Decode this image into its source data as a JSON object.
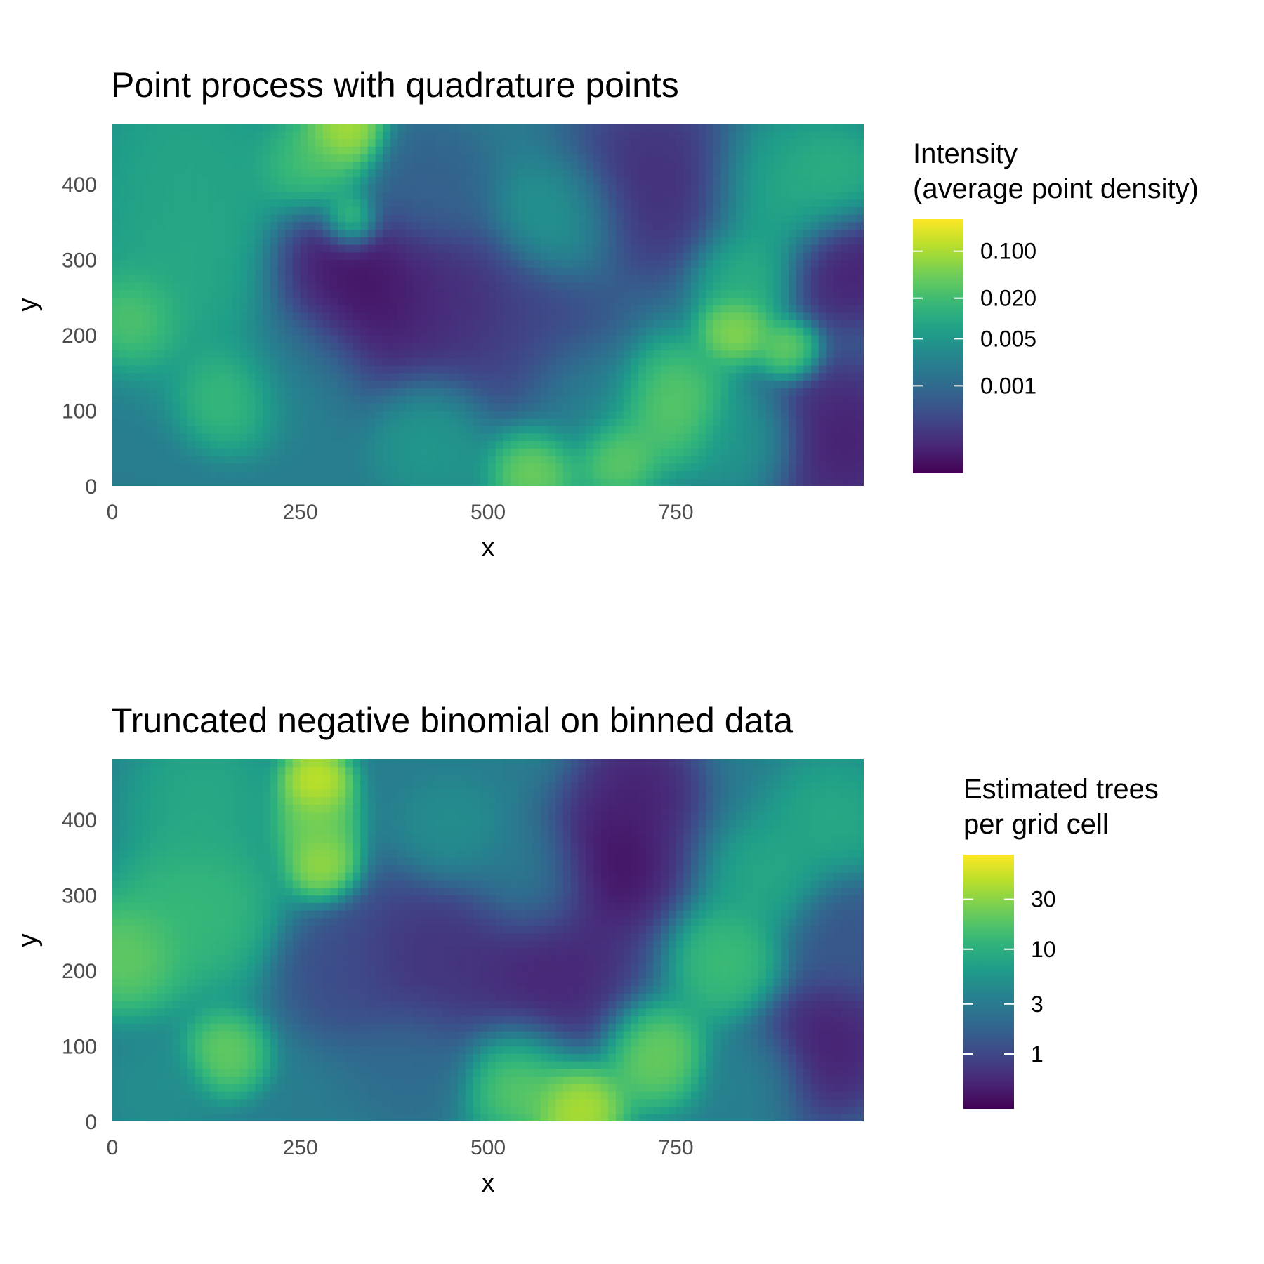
{
  "chart_data": [
    {
      "type": "heatmap",
      "title": "Point process with quadrature points",
      "xlabel": "x",
      "ylabel": "y",
      "xlim": [
        0,
        1000
      ],
      "ylim": [
        0,
        480
      ],
      "xticks": [
        0,
        250,
        500,
        750
      ],
      "xtick_labels": [
        "0",
        "250",
        "500",
        "750"
      ],
      "yticks": [
        0,
        100,
        200,
        300,
        400
      ],
      "ytick_labels": [
        "0",
        "100",
        "200",
        "300",
        "400"
      ],
      "grid": false,
      "colorscale": "viridis",
      "color_scale_type": "log",
      "legend": {
        "title_lines": [
          "Intensity",
          "(average point density)"
        ],
        "placement": "right",
        "range": [
          5e-05,
          0.3
        ],
        "ticks": [
          0.1,
          0.02,
          0.005,
          0.001
        ],
        "tick_labels": [
          "0.100",
          "0.020",
          "0.005",
          "0.001"
        ]
      },
      "hotspots": [
        {
          "x": 310,
          "y": 470,
          "v": 0.95,
          "r": 38
        },
        {
          "x": 315,
          "y": 350,
          "v": 0.95,
          "r": 28
        },
        {
          "x": 270,
          "y": 420,
          "v": 0.75,
          "r": 55
        },
        {
          "x": 30,
          "y": 225,
          "v": 0.78,
          "r": 45
        },
        {
          "x": 160,
          "y": 120,
          "v": 0.72,
          "r": 50
        },
        {
          "x": 110,
          "y": 300,
          "v": 0.62,
          "r": 110
        },
        {
          "x": 100,
          "y": 440,
          "v": 0.6,
          "r": 80
        },
        {
          "x": 330,
          "y": 250,
          "v": 0.0,
          "r": 90
        },
        {
          "x": 280,
          "y": 300,
          "v": 0.04,
          "r": 55
        },
        {
          "x": 450,
          "y": 230,
          "v": 0.1,
          "r": 80
        },
        {
          "x": 560,
          "y": 180,
          "v": 0.18,
          "r": 90
        },
        {
          "x": 720,
          "y": 400,
          "v": 0.1,
          "r": 90
        },
        {
          "x": 620,
          "y": 120,
          "v": 0.5,
          "r": 60
        },
        {
          "x": 740,
          "y": 110,
          "v": 0.78,
          "r": 60
        },
        {
          "x": 560,
          "y": 30,
          "v": 0.85,
          "r": 45
        },
        {
          "x": 670,
          "y": 40,
          "v": 0.8,
          "r": 40
        },
        {
          "x": 830,
          "y": 210,
          "v": 0.88,
          "r": 35
        },
        {
          "x": 900,
          "y": 180,
          "v": 0.82,
          "r": 30
        },
        {
          "x": 840,
          "y": 280,
          "v": 0.65,
          "r": 50
        },
        {
          "x": 890,
          "y": 390,
          "v": 0.62,
          "r": 70
        },
        {
          "x": 960,
          "y": 410,
          "v": 0.65,
          "r": 50
        },
        {
          "x": 980,
          "y": 290,
          "v": 0.05,
          "r": 60
        },
        {
          "x": 970,
          "y": 60,
          "v": 0.05,
          "r": 80
        },
        {
          "x": 420,
          "y": 400,
          "v": 0.3,
          "r": 60
        },
        {
          "x": 600,
          "y": 360,
          "v": 0.55,
          "r": 60
        },
        {
          "x": 250,
          "y": 150,
          "v": 0.45,
          "r": 70
        },
        {
          "x": 430,
          "y": 70,
          "v": 0.55,
          "r": 60
        },
        {
          "x": 850,
          "y": 60,
          "v": 0.55,
          "r": 50
        }
      ]
    },
    {
      "type": "heatmap",
      "title": "Truncated negative binomial on binned data",
      "xlabel": "x",
      "ylabel": "y",
      "xlim": [
        0,
        1000
      ],
      "ylim": [
        0,
        480
      ],
      "xticks": [
        0,
        250,
        500,
        750
      ],
      "xtick_labels": [
        "0",
        "250",
        "500",
        "750"
      ],
      "yticks": [
        0,
        100,
        200,
        300,
        400
      ],
      "ytick_labels": [
        "0",
        "100",
        "200",
        "300",
        "400"
      ],
      "grid": false,
      "colorscale": "viridis",
      "color_scale_type": "log",
      "legend": {
        "title_lines": [
          "Estimated trees",
          "per grid cell"
        ],
        "placement": "right",
        "range": [
          0.3,
          80
        ],
        "ticks": [
          30,
          10,
          3,
          1
        ],
        "tick_labels": [
          "30",
          "10",
          "3",
          "1"
        ]
      },
      "hotspots": [
        {
          "x": 270,
          "y": 450,
          "v": 0.98,
          "r": 35
        },
        {
          "x": 280,
          "y": 340,
          "v": 0.9,
          "r": 35
        },
        {
          "x": 270,
          "y": 395,
          "v": 0.82,
          "r": 40
        },
        {
          "x": 20,
          "y": 220,
          "v": 0.8,
          "r": 55
        },
        {
          "x": 110,
          "y": 280,
          "v": 0.7,
          "r": 80
        },
        {
          "x": 150,
          "y": 90,
          "v": 0.8,
          "r": 40
        },
        {
          "x": 120,
          "y": 430,
          "v": 0.62,
          "r": 70
        },
        {
          "x": 660,
          "y": 340,
          "v": 0.0,
          "r": 70
        },
        {
          "x": 700,
          "y": 440,
          "v": 0.06,
          "r": 60
        },
        {
          "x": 580,
          "y": 200,
          "v": 0.06,
          "r": 90
        },
        {
          "x": 420,
          "y": 210,
          "v": 0.12,
          "r": 90
        },
        {
          "x": 300,
          "y": 200,
          "v": 0.22,
          "r": 60
        },
        {
          "x": 450,
          "y": 380,
          "v": 0.5,
          "r": 50
        },
        {
          "x": 560,
          "y": 320,
          "v": 0.45,
          "r": 60
        },
        {
          "x": 620,
          "y": 20,
          "v": 0.95,
          "r": 45
        },
        {
          "x": 540,
          "y": 60,
          "v": 0.8,
          "r": 55
        },
        {
          "x": 720,
          "y": 90,
          "v": 0.82,
          "r": 50
        },
        {
          "x": 820,
          "y": 210,
          "v": 0.72,
          "r": 55
        },
        {
          "x": 880,
          "y": 320,
          "v": 0.62,
          "r": 55
        },
        {
          "x": 960,
          "y": 400,
          "v": 0.62,
          "r": 60
        },
        {
          "x": 950,
          "y": 100,
          "v": 0.05,
          "r": 70
        },
        {
          "x": 970,
          "y": 250,
          "v": 0.25,
          "r": 60
        },
        {
          "x": 60,
          "y": 40,
          "v": 0.5,
          "r": 50
        },
        {
          "x": 400,
          "y": 80,
          "v": 0.35,
          "r": 60
        },
        {
          "x": 860,
          "y": 60,
          "v": 0.45,
          "r": 50
        }
      ]
    }
  ]
}
